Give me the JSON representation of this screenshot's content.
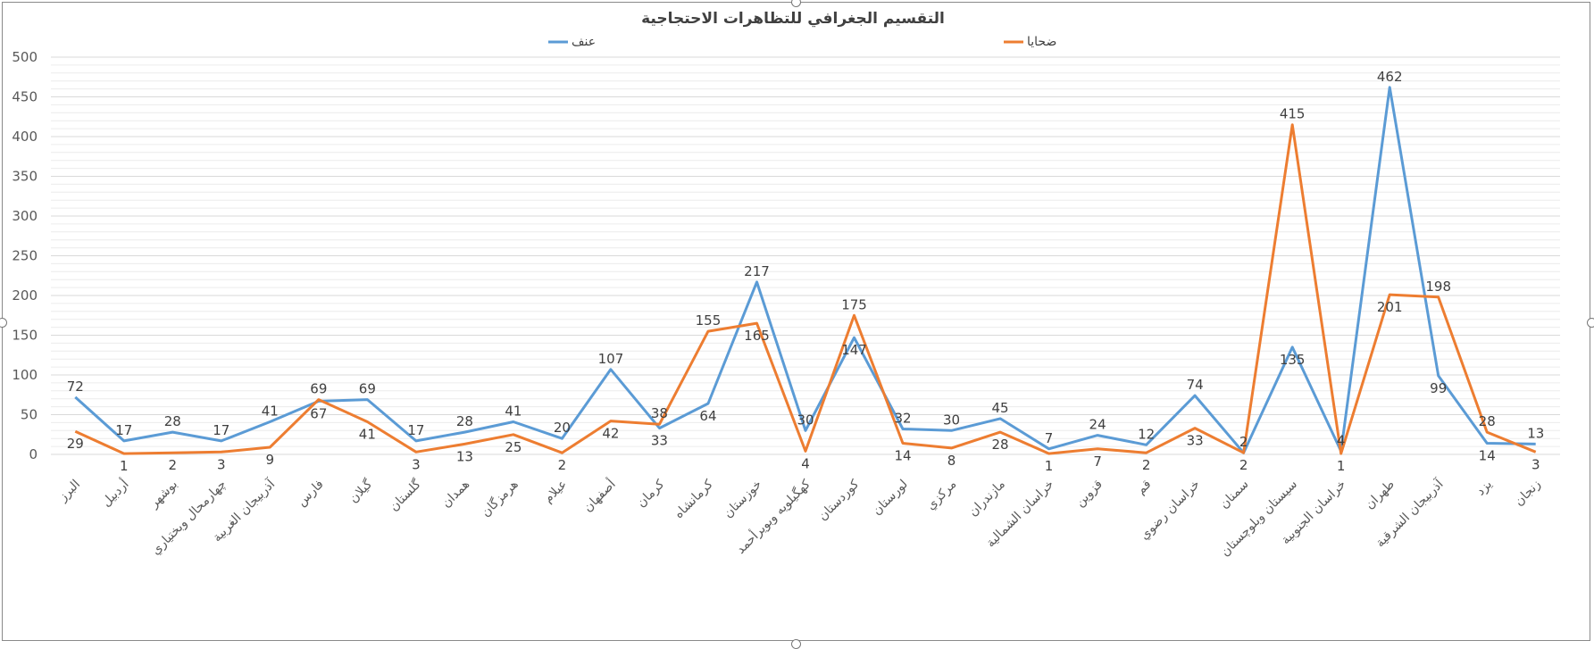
{
  "chart_data": {
    "type": "line",
    "title": "التقسيم الجغرافي للتظاهرات الاحتجاجية",
    "xlabel": "",
    "ylabel": "",
    "ylim": [
      0,
      500
    ],
    "yticks": [
      0,
      50,
      100,
      150,
      200,
      250,
      300,
      350,
      400,
      450,
      500
    ],
    "grid": true,
    "legend_position": "top",
    "categories": [
      "البرز",
      "أردبيل",
      "بوشهر",
      "چهارمحال وبختياري",
      "آذربيجان الغربية",
      "فارس",
      "گيلان",
      "گلستان",
      "همدان",
      "هرمزگان",
      "عيلام",
      "أصفهان",
      "كرمان",
      "كرمانشاه",
      "خوزستان",
      "كهگيلويه وبويرأحمد",
      "كوردستان",
      "لورستان",
      "مركزي",
      "مازندران",
      "خراسان الشمالية",
      "قزوين",
      "قم",
      "خراسان رضوي",
      "سمنان",
      "سيستان وبلوچستان",
      "خراسان الجنوبية",
      "طهران",
      "آذربيجان الشرقية",
      "يزد",
      "زنجان"
    ],
    "series": [
      {
        "name": "عنف",
        "color": "#5b9bd5",
        "values": [
          72,
          17,
          28,
          17,
          41,
          67,
          69,
          17,
          28,
          41,
          20,
          107,
          33,
          64,
          217,
          30,
          147,
          32,
          30,
          45,
          7,
          24,
          12,
          74,
          2,
          135,
          4,
          462,
          99,
          14,
          13
        ]
      },
      {
        "name": "ضحايا",
        "color": "#ed7d31",
        "values": [
          29,
          1,
          2,
          3,
          9,
          69,
          41,
          3,
          13,
          25,
          2,
          42,
          38,
          155,
          165,
          4,
          175,
          14,
          8,
          28,
          1,
          7,
          2,
          33,
          2,
          415,
          1,
          201,
          198,
          28,
          3
        ]
      }
    ]
  }
}
